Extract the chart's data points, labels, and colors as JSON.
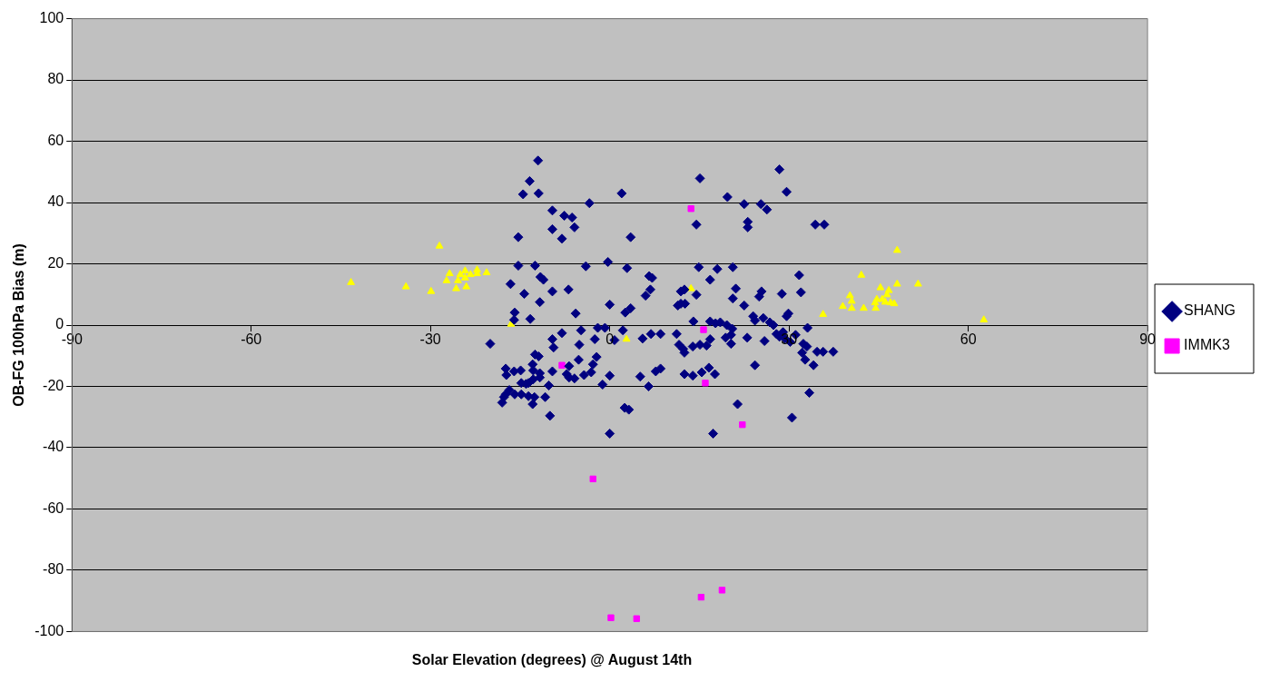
{
  "chart_data": {
    "type": "scatter",
    "xlabel": "Solar Elevation (degrees) @ August 14th",
    "ylabel": "OB-FG 100hPa Bias (m)",
    "xlim": [
      -90,
      90
    ],
    "ylim": [
      -100,
      100
    ],
    "xticks": [
      -90,
      -60,
      -30,
      0,
      30,
      60,
      90
    ],
    "yticks": [
      -100,
      -80,
      -60,
      -40,
      -20,
      0,
      20,
      40,
      60,
      80,
      100
    ],
    "grid": "y",
    "legend": "right",
    "series": [
      {
        "name": "SHANG",
        "color": "#000080",
        "marker": "diamond",
        "x": [
          -12.0,
          -13.4,
          -14.5,
          -11.9,
          -9.6,
          -9.6,
          -7.6,
          -6.3,
          -8.0,
          -5.9,
          -3.4,
          2.0,
          3.5,
          -4.0,
          -0.3,
          2.9,
          -15.3,
          -15.3,
          -12.5,
          -11.6,
          -11.1,
          -16.6,
          -14.3,
          -11.7,
          -9.6,
          -6.9,
          -5.7,
          -15.9,
          -16.0,
          -13.3,
          0,
          2.6,
          3.5,
          -9.6,
          -9.4,
          -8.0,
          -4.8,
          -2.0,
          -0.8,
          -5.1,
          -2.5,
          -2.2,
          -5.2,
          -2.8,
          -3.1,
          -6.8,
          -7.2,
          -5.9,
          -6.8,
          -4.3,
          -9.6,
          -12.5,
          -11.9,
          -12.9,
          -12.8,
          -11.7,
          -11.7,
          -12.8,
          -14.9,
          -16.0,
          -17.4,
          -17.3,
          -14.8,
          -14.0,
          -13.6,
          -12.6,
          -10.2,
          -10.8,
          -16.8,
          -15.9,
          -17.4,
          -17.7,
          -14.8,
          -13.6,
          -12.9,
          -18.0,
          -10.0,
          -1.2,
          0,
          0,
          0.8,
          2.2,
          2.5,
          3.2,
          5.1,
          5.5,
          6.6,
          7.1,
          6.8,
          6.0,
          6.9,
          8.5,
          6.5,
          7.7,
          8.5,
          11.2,
          11.9,
          12.5,
          11.9,
          11.4,
          12.6,
          14.5,
          14.0,
          11.6,
          12.3,
          12.5,
          13.9,
          15.1,
          16.2,
          15.4,
          12.5,
          13.9,
          16.6,
          17.6,
          17.3,
          14.5,
          15.1,
          14.9,
          16.8,
          18.0,
          19.7,
          20.6,
          20.6,
          21.1,
          16.8,
          17.7,
          18.5,
          19.6,
          20.5,
          20.3,
          19.4,
          20.3,
          16.8,
          21.4,
          22.5,
          23.1,
          23.1,
          22.5,
          23.0,
          24.0,
          24.3,
          25.0,
          25.4,
          24.3,
          25.9,
          25.3,
          26.3,
          25.7,
          26.8,
          27.4,
          28.4,
          29.6,
          28.8,
          29.0,
          29.6,
          29.9,
          29.3,
          30.2,
          31.1,
          31.7,
          32.0,
          32.4,
          33.0,
          32.7,
          33.1,
          33.4,
          30.5,
          34.1,
          34.4,
          35.9,
          34.7,
          35.7,
          37.4,
          27.9,
          28.4,
          32.2,
          -20.0
        ],
        "values": [
          53.7,
          47.0,
          42.7,
          43.0,
          37.4,
          31.3,
          35.7,
          35.1,
          28.2,
          31.9,
          39.8,
          43.0,
          28.7,
          19.2,
          20.6,
          18.6,
          28.7,
          19.4,
          19.4,
          15.7,
          14.8,
          13.4,
          10.2,
          7.5,
          11.0,
          11.6,
          3.8,
          4.1,
          1.7,
          2.0,
          6.7,
          4.1,
          5.5,
          -4.6,
          -7.3,
          -2.6,
          -1.7,
          -0.9,
          -0.9,
          -6.4,
          -4.6,
          -10.4,
          -11.3,
          -12.8,
          -15.4,
          -13.4,
          -16.0,
          -17.4,
          -17.1,
          -16.3,
          -15.1,
          -9.6,
          -10.2,
          -12.8,
          -14.8,
          -15.7,
          -17.1,
          -17.7,
          -14.8,
          -15.1,
          -14.2,
          -16.3,
          -18.9,
          -19.2,
          -18.9,
          -23.5,
          -19.7,
          -23.5,
          -21.2,
          -22.6,
          -22.6,
          -23.5,
          -22.6,
          -23.2,
          -25.8,
          -25.3,
          -29.6,
          -19.4,
          -16.5,
          -35.4,
          -4.9,
          -1.7,
          -27.0,
          -27.6,
          -16.8,
          -4.4,
          16.0,
          15.4,
          11.6,
          9.6,
          -2.9,
          -2.9,
          -20.0,
          -15.1,
          -14.2,
          -2.9,
          11.0,
          11.6,
          7.0,
          6.4,
          7.0,
          9.9,
          1.2,
          -6.4,
          -7.8,
          -9.0,
          -7.0,
          -6.4,
          -6.7,
          -15.4,
          -16.0,
          -16.5,
          -13.9,
          -16.0,
          -35.4,
          32.8,
          47.9,
          18.9,
          14.8,
          18.3,
          41.8,
          18.9,
          8.7,
          11.9,
          1.2,
          0.6,
          0.9,
          0,
          -1.2,
          -3.2,
          -4.1,
          -6.1,
          -4.6,
          -25.8,
          39.5,
          33.7,
          31.9,
          6.4,
          -4.1,
          2.9,
          1.5,
          9.3,
          11.0,
          -13.1,
          -5.2,
          39.5,
          37.7,
          2.3,
          0.9,
          0,
          50.8,
          43.5,
          10.2,
          -2.3,
          2.9,
          3.8,
          -4.4,
          -5.5,
          -3.2,
          16.3,
          10.7,
          -6.1,
          -7.0,
          -11.3,
          -0.9,
          -22.1,
          -30.2,
          -13.1,
          32.8,
          32.8,
          -8.7,
          -8.7,
          -8.7,
          -2.9,
          -3.8,
          -9.0,
          -6.1
        ]
      },
      {
        "name": "IMMK3",
        "color": "#ff00ff",
        "marker": "square",
        "x": [
          13.6,
          -8.0,
          15.7,
          16.0,
          22.2,
          -2.8,
          0.2,
          4.5,
          15.3,
          18.8
        ],
        "values": [
          38.0,
          -13.1,
          -1.5,
          -18.9,
          -32.5,
          -50.2,
          -95.5,
          -95.8,
          -88.8,
          -86.5
        ]
      },
      {
        "color": "#ffff00",
        "marker": "triangle",
        "x": [
          -43.3,
          -34.1,
          -29.9,
          -28.5,
          -27.3,
          -26.8,
          -25.7,
          -25.4,
          -25.0,
          -24.2,
          -24.0,
          -24.2,
          -23.3,
          -22.2,
          -22.2,
          -20.6,
          -16.5,
          2.8,
          13.6,
          35.7,
          39.0,
          40.2,
          40.5,
          40.5,
          42.1,
          42.5,
          44.4,
          44.5,
          44.7,
          45.3,
          45.6,
          46.1,
          46.4,
          46.7,
          47.0,
          47.6,
          48.1,
          48.1,
          51.6,
          62.6
        ],
        "values": [
          13.9,
          12.5,
          11.0,
          25.8,
          14.5,
          16.8,
          11.9,
          14.5,
          16.5,
          17.7,
          12.5,
          15.4,
          16.5,
          18.0,
          16.8,
          17.1,
          0.3,
          -4.6,
          11.9,
          3.5,
          6.1,
          9.6,
          7.8,
          5.5,
          16.3,
          5.5,
          7.3,
          5.5,
          8.4,
          12.2,
          8.4,
          7.5,
          9.9,
          11.3,
          7.3,
          7.0,
          24.4,
          13.4,
          13.4,
          1.7
        ]
      }
    ]
  }
}
